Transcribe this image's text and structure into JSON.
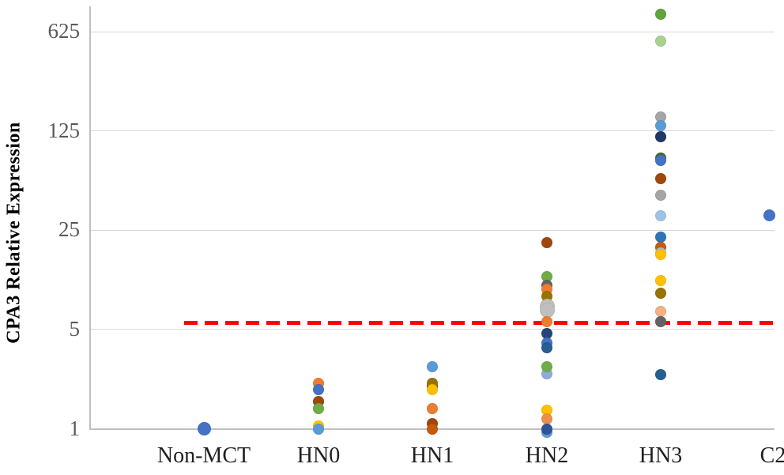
{
  "chart_data": {
    "type": "scatter",
    "title": "",
    "xlabel": "",
    "ylabel": "CPA3 Relative Expression",
    "yscale": "log-base-5",
    "ylim": [
      1,
      900
    ],
    "grid": "horizontal-on",
    "legend": "none",
    "yticks": [
      {
        "label": "1",
        "value": 1
      },
      {
        "label": "5",
        "value": 5
      },
      {
        "label": "25",
        "value": 25
      },
      {
        "label": "125",
        "value": 125
      },
      {
        "label": "625",
        "value": 625
      }
    ],
    "categories": [
      "Non-MCT",
      "HN0",
      "HN1",
      "HN2",
      "HN3",
      "C2"
    ],
    "threshold_line": {
      "value": 5.6,
      "color": "#fe0000",
      "style": "dashed"
    },
    "series": [
      {
        "category": "Non-MCT",
        "points": [
          {
            "value": 1.0,
            "color": "#4472c4",
            "size": 17
          }
        ]
      },
      {
        "category": "HN0",
        "points": [
          {
            "value": 2.1,
            "color": "#ed7d31"
          },
          {
            "value": 1.88,
            "color": "#4472c4"
          },
          {
            "value": 1.55,
            "color": "#9e480e"
          },
          {
            "value": 1.38,
            "color": "#70ad47"
          },
          {
            "value": 1.04,
            "color": "#ffc000"
          },
          {
            "value": 1.0,
            "color": "#5b9bd5"
          }
        ]
      },
      {
        "category": "HN1",
        "points": [
          {
            "value": 2.75,
            "color": "#5b9bd5"
          },
          {
            "value": 1.98,
            "color": "#264478"
          },
          {
            "value": 2.1,
            "color": "#997300"
          },
          {
            "value": 1.88,
            "color": "#ffc000"
          },
          {
            "value": 1.38,
            "color": "#ed7d31"
          },
          {
            "value": 1.08,
            "color": "#9e480e"
          },
          {
            "value": 1.0,
            "color": "#c55a11"
          }
        ]
      },
      {
        "category": "HN2",
        "points": [
          {
            "value": 20.5,
            "color": "#9e480e"
          },
          {
            "value": 11.8,
            "color": "#70ad47"
          },
          {
            "value": 10.2,
            "color": "#636363"
          },
          {
            "value": 9.6,
            "color": "#ed7d31"
          },
          {
            "value": 8.5,
            "color": "#997300"
          },
          {
            "value": 7.3,
            "color": "#bfbfbf",
            "size": 19
          },
          {
            "value": 6.8,
            "color": "#bfbfbf",
            "size": 19
          },
          {
            "value": 5.7,
            "color": "#ed7d31"
          },
          {
            "value": 4.7,
            "color": "#264478"
          },
          {
            "value": 4.0,
            "color": "#4472c4"
          },
          {
            "value": 3.7,
            "color": "#255e91"
          },
          {
            "value": 2.45,
            "color": "#8faadc"
          },
          {
            "value": 2.75,
            "color": "#70ad47"
          },
          {
            "value": 1.36,
            "color": "#ffc000"
          },
          {
            "value": 1.17,
            "color": "#ef8e4a"
          },
          {
            "value": 0.95,
            "color": "#5b9bd5"
          },
          {
            "value": 1.0,
            "color": "#2f5597"
          }
        ]
      },
      {
        "category": "HN3",
        "points": [
          {
            "value": 830,
            "color": "#5fa33e"
          },
          {
            "value": 540,
            "color": "#a9d18e"
          },
          {
            "value": 157,
            "color": "#a5a5a5"
          },
          {
            "value": 137,
            "color": "#5b9bd5"
          },
          {
            "value": 114,
            "color": "#1f3864"
          },
          {
            "value": 81,
            "color": "#43682b"
          },
          {
            "value": 78,
            "color": "#4472c4"
          },
          {
            "value": 58,
            "color": "#9e480e"
          },
          {
            "value": 44,
            "color": "#a5a5a5"
          },
          {
            "value": 31.5,
            "color": "#9dc3e6"
          },
          {
            "value": 22.5,
            "color": "#2e75b6"
          },
          {
            "value": 19,
            "color": "#c55a11"
          },
          {
            "value": 17.2,
            "color": "#9dc3e6"
          },
          {
            "value": 16.8,
            "color": "#ffc000"
          },
          {
            "value": 11,
            "color": "#ffc000"
          },
          {
            "value": 9,
            "color": "#997300"
          },
          {
            "value": 6.7,
            "color": "#f4b183"
          },
          {
            "value": 5.7,
            "color": "#636363"
          },
          {
            "value": 2.4,
            "color": "#255e91"
          }
        ]
      },
      {
        "category": "C2",
        "points": [
          {
            "value": 31.7,
            "color": "#4472c4",
            "size": 15,
            "dx": -5
          }
        ]
      }
    ]
  }
}
